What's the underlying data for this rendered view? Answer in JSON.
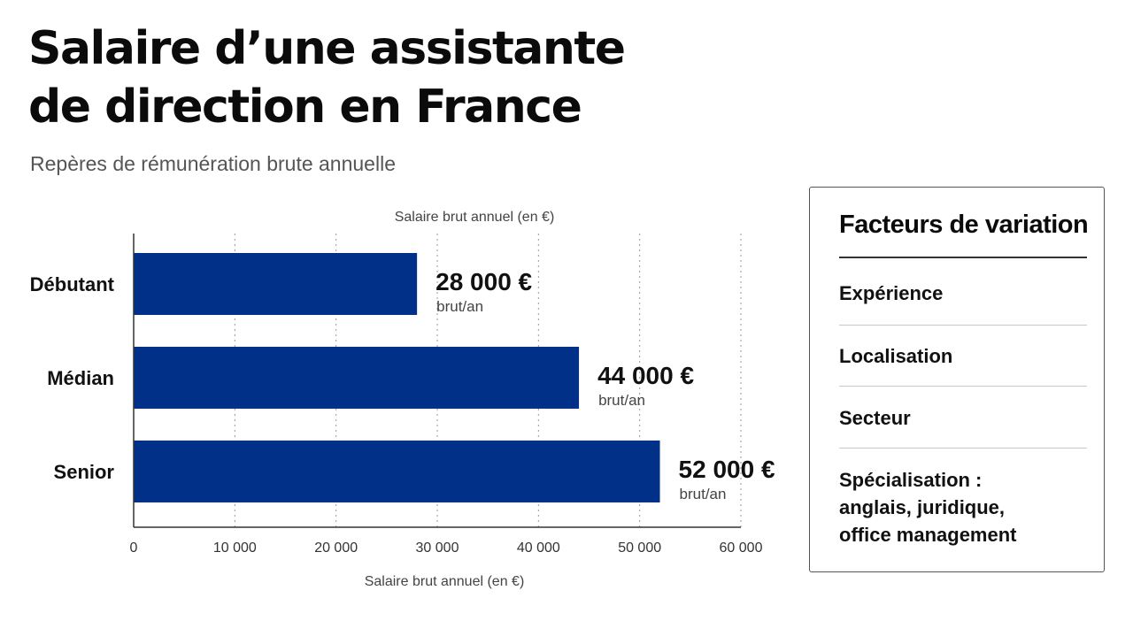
{
  "title_line1": "Salaire d’une assistante",
  "title_line2": "de direction en France",
  "subtitle": "Repères de rémunération brute annuelle",
  "chart_data": {
    "type": "bar",
    "orientation": "horizontal",
    "categories": [
      "Débutant",
      "Médian",
      "Senior"
    ],
    "values": [
      28000,
      44000,
      52000
    ],
    "value_labels": [
      "28 000 €",
      "44 000 €",
      "52 000 €"
    ],
    "value_unit": "brut/an",
    "xlabel_top": "Salaire brut annuel (en €)",
    "xlabel": "Salaire brut annuel (en €)",
    "xlim": [
      0,
      60000
    ],
    "xticks": [
      0,
      10000,
      20000,
      30000,
      40000,
      50000,
      60000
    ],
    "xtick_labels": [
      "0",
      "10 000",
      "20 000",
      "30 000",
      "40 000",
      "50 000",
      "60 000"
    ],
    "bar_color": "#003087",
    "grid": "vertical-dotted"
  },
  "factors": {
    "title": "Facteurs de variation",
    "items": [
      {
        "text": "Expérience"
      },
      {
        "text": "Localisation"
      },
      {
        "text": "Secteur"
      },
      {
        "text": "Spécialisation :\nanglais, juridique,\noffice management"
      }
    ]
  }
}
